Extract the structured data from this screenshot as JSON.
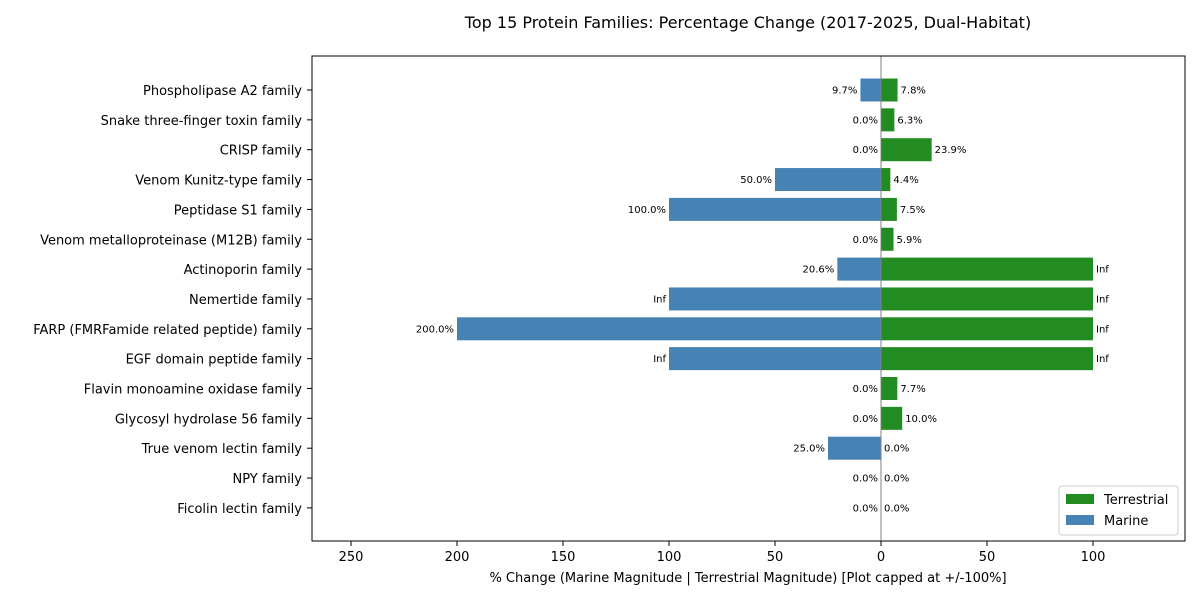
{
  "chart_data": {
    "type": "bar",
    "orientation": "horizontal-diverging",
    "title": "Top 15 Protein Families: Percentage Change (2017-2025, Dual-Habitat)",
    "xlabel": "% Change (Marine Magnitude | Terrestrial Magnitude) [Plot capped at +/-100%]",
    "ylabel": "",
    "xlim": [
      -250,
      100
    ],
    "x_ticks": [
      {
        "value": -250,
        "label": "250"
      },
      {
        "value": -200,
        "label": "200"
      },
      {
        "value": -150,
        "label": "150"
      },
      {
        "value": -100,
        "label": "100"
      },
      {
        "value": -50,
        "label": "50"
      },
      {
        "value": 0,
        "label": "0"
      },
      {
        "value": 50,
        "label": "50"
      },
      {
        "value": 100,
        "label": "100"
      }
    ],
    "grid": false,
    "legend_position": "bottom-right",
    "categories": [
      "Phospholipase A2 family",
      "Snake three-finger toxin family",
      "CRISP family",
      "Venom Kunitz-type family",
      "Peptidase S1 family",
      "Venom metalloproteinase (M12B) family",
      "Actinoporin family",
      "Nemertide family",
      "FARP (FMRFamide related peptide) family",
      "EGF domain peptide family",
      "Flavin monoamine oxidase family",
      "Glycosyl hydrolase 56 family",
      "True venom lectin family",
      "NPY family",
      "Ficolin lectin family"
    ],
    "series": [
      {
        "name": "Terrestrial",
        "color": "#228b22",
        "values": [
          7.8,
          6.3,
          23.9,
          4.4,
          7.5,
          5.9,
          100,
          100,
          100,
          100,
          7.7,
          10.0,
          0.0,
          0.0,
          0.0
        ],
        "labels": [
          "7.8%",
          "6.3%",
          "23.9%",
          "4.4%",
          "7.5%",
          "5.9%",
          "Inf",
          "Inf",
          "Inf",
          "Inf",
          "7.7%",
          "10.0%",
          "0.0%",
          "0.0%",
          "0.0%"
        ]
      },
      {
        "name": "Marine",
        "color": "#4682b4",
        "values": [
          9.7,
          0.0,
          0.0,
          50.0,
          100.0,
          0.0,
          20.6,
          100,
          200.0,
          100,
          0.0,
          0.0,
          25.0,
          0.0,
          0.0
        ],
        "labels": [
          "9.7%",
          "0.0%",
          "0.0%",
          "50.0%",
          "100.0%",
          "0.0%",
          "20.6%",
          "Inf",
          "200.0%",
          "Inf",
          "0.0%",
          "0.0%",
          "25.0%",
          "0.0%",
          "0.0%"
        ]
      }
    ]
  }
}
